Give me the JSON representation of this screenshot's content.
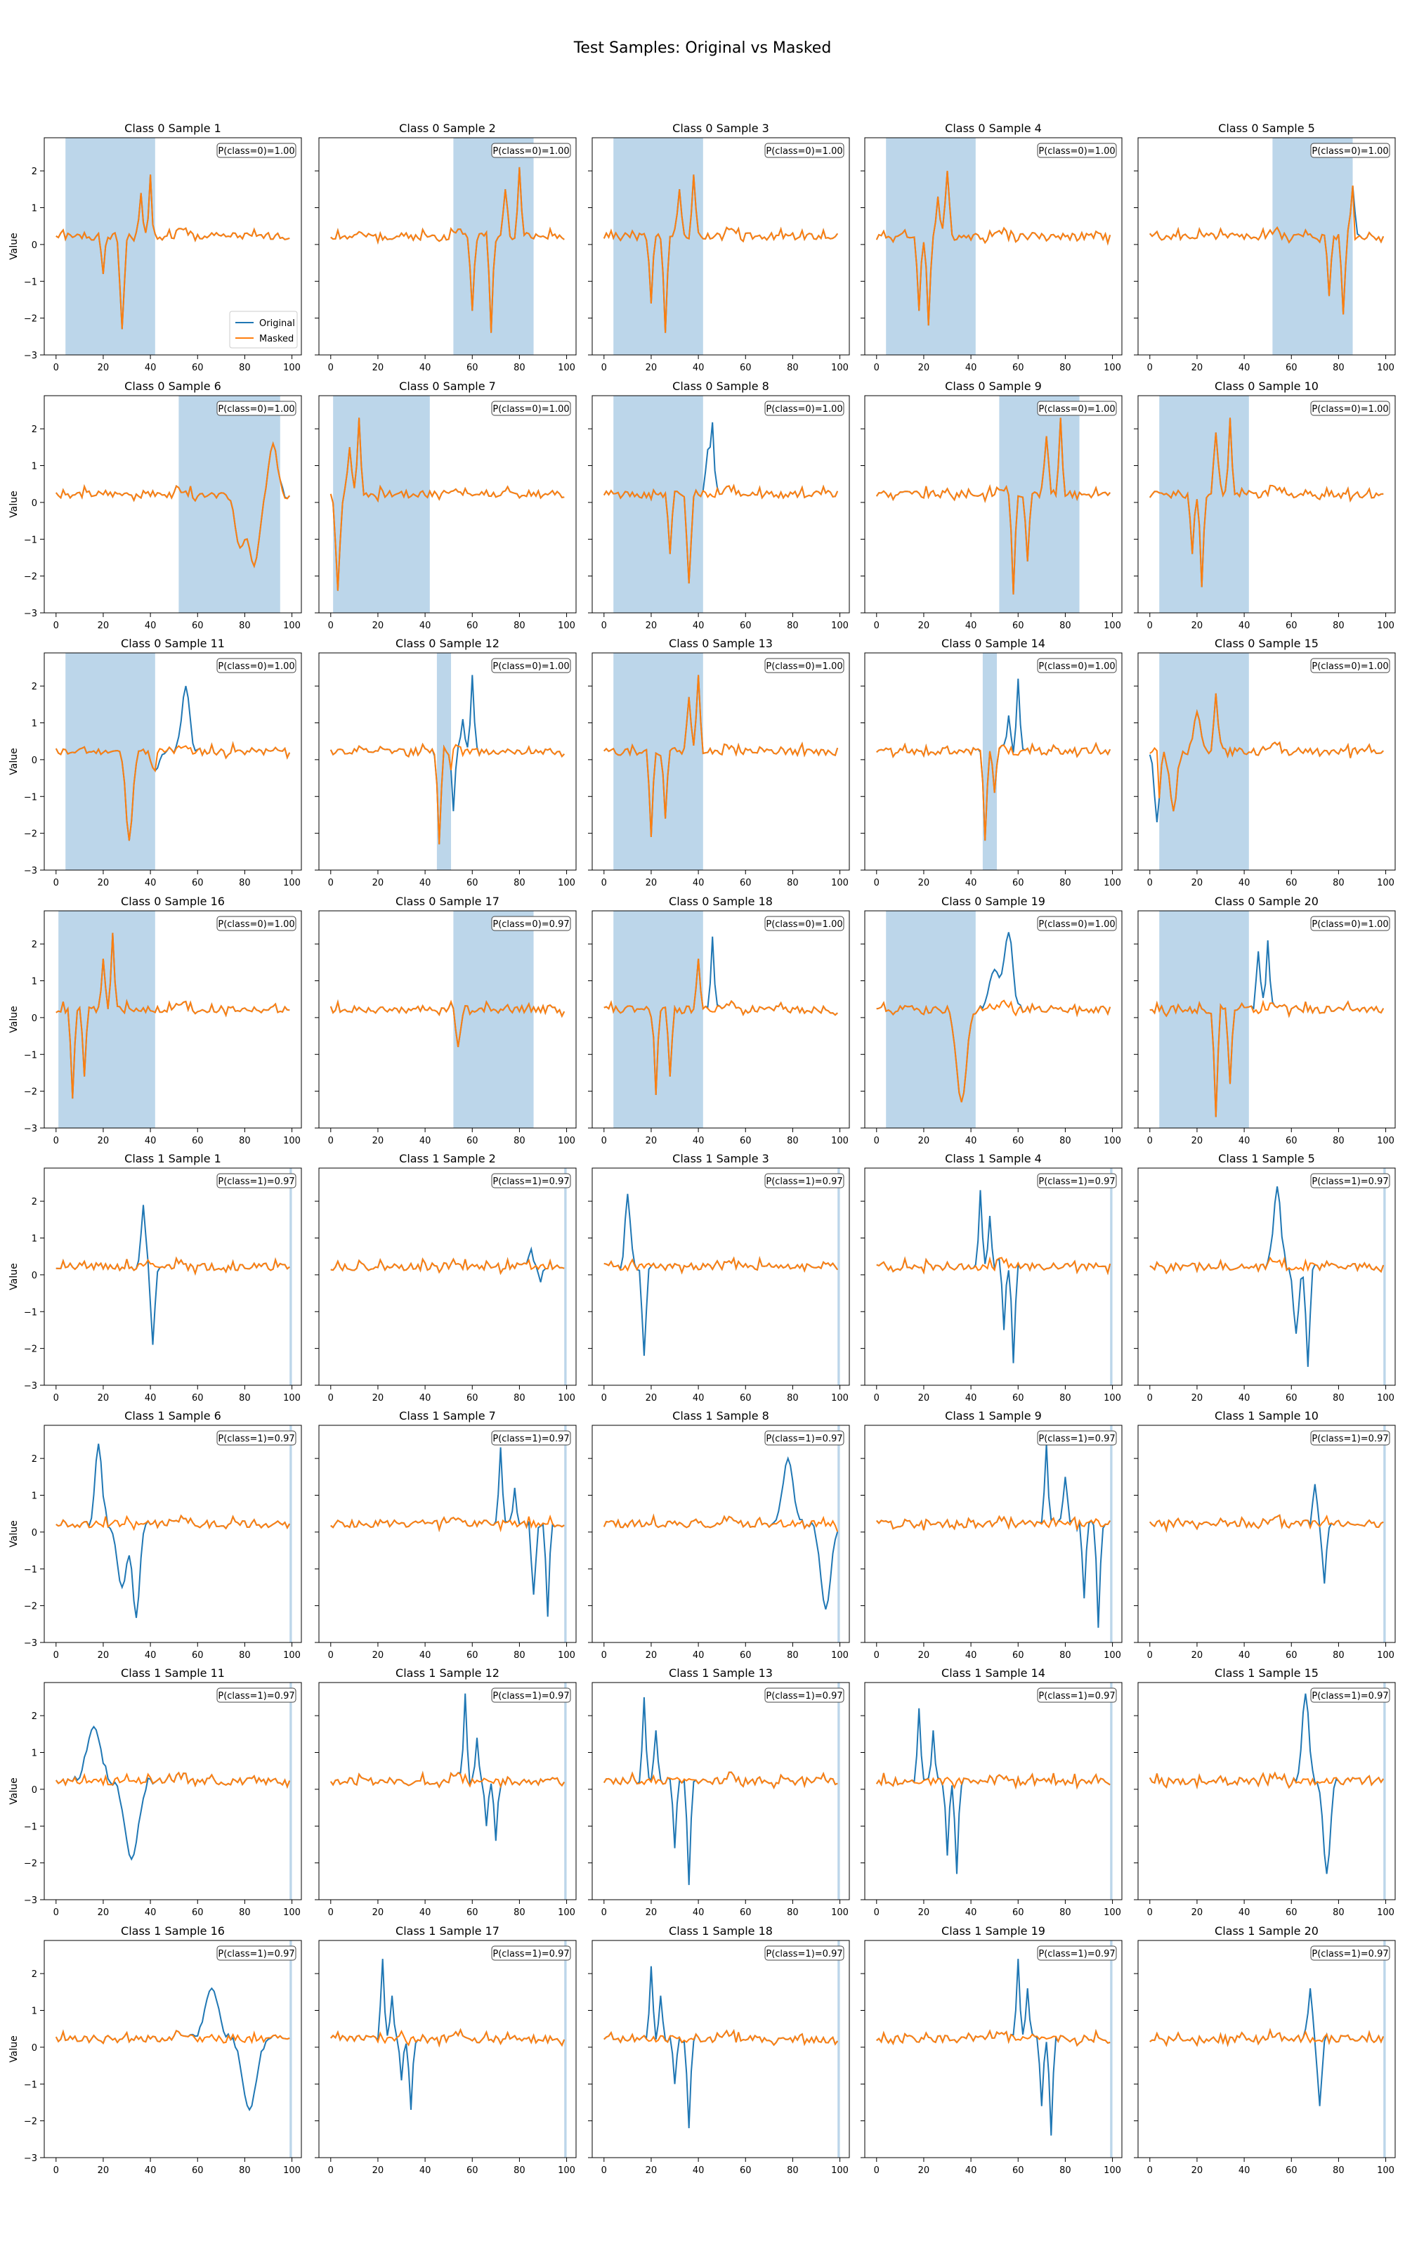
{
  "figure": {
    "title": "Test Samples: Original vs Masked",
    "ylabel": "Value",
    "legend": [
      "Original",
      "Masked"
    ],
    "colors": {
      "original": "#1f77b4",
      "masked": "#ff7f0e",
      "mask_span": "#bcd6ea"
    }
  },
  "chart_data": {
    "type": "line",
    "grid": false,
    "xlim": [
      -5,
      104
    ],
    "ylim": [
      -3,
      2.9
    ],
    "xticks": [
      0,
      20,
      40,
      60,
      80,
      100
    ],
    "yticks": [
      -3,
      -2,
      -1,
      0,
      1,
      2
    ],
    "panels": [
      {
        "title": "Class 0 Sample 1",
        "prob": "P(class=0)=1.00",
        "mask": [
          4,
          42
        ],
        "events": [
          [
            20,
            -0.8,
            1
          ],
          [
            28,
            -2.3,
            1.2
          ],
          [
            36,
            1.4,
            1
          ],
          [
            40,
            1.9,
            0.8
          ]
        ]
      },
      {
        "title": "Class 0 Sample 2",
        "prob": "P(class=0)=1.00",
        "mask": [
          52,
          86
        ],
        "events": [
          [
            60,
            -1.8,
            1
          ],
          [
            68,
            -2.4,
            1
          ],
          [
            74,
            1.5,
            1.2
          ],
          [
            80,
            2.1,
            1
          ]
        ]
      },
      {
        "title": "Class 0 Sample 3",
        "prob": "P(class=0)=1.00",
        "mask": [
          4,
          42
        ],
        "events": [
          [
            20,
            -1.6,
            1
          ],
          [
            26,
            -2.4,
            1
          ],
          [
            32,
            1.5,
            1.2
          ],
          [
            38,
            1.9,
            1
          ]
        ]
      },
      {
        "title": "Class 0 Sample 4",
        "prob": "P(class=0)=1.00",
        "mask": [
          4,
          42
        ],
        "events": [
          [
            18,
            -1.8,
            1
          ],
          [
            22,
            -2.2,
            1
          ],
          [
            26,
            1.3,
            1
          ],
          [
            30,
            2.0,
            1.2
          ]
        ]
      },
      {
        "title": "Class 0 Sample 5",
        "prob": "P(class=0)=1.00",
        "mask": [
          52,
          86
        ],
        "events": [
          [
            76,
            -1.4,
            1
          ],
          [
            82,
            -1.9,
            1
          ],
          [
            86,
            1.6,
            1.2
          ]
        ]
      },
      {
        "title": "Class 0 Sample 6",
        "prob": "P(class=0)=1.00",
        "mask": [
          52,
          95
        ],
        "events": [
          [
            78,
            -1.2,
            3
          ],
          [
            84,
            -1.7,
            3
          ],
          [
            92,
            1.6,
            2.5
          ]
        ]
      },
      {
        "title": "Class 0 Sample 7",
        "prob": "P(class=0)=1.00",
        "mask": [
          1,
          42
        ],
        "events": [
          [
            3,
            -2.4,
            1.2
          ],
          [
            8,
            1.5,
            1.2
          ],
          [
            12,
            2.3,
            1
          ]
        ]
      },
      {
        "title": "Class 0 Sample 8",
        "prob": "P(class=0)=1.00",
        "mask": [
          4,
          42
        ],
        "events": [
          [
            28,
            -1.4,
            1
          ],
          [
            36,
            -2.2,
            1.2
          ],
          [
            44,
            1.4,
            1.2
          ],
          [
            46,
            2.1,
            1
          ]
        ]
      },
      {
        "title": "Class 0 Sample 9",
        "prob": "P(class=0)=1.00",
        "mask": [
          52,
          86
        ],
        "events": [
          [
            58,
            -2.5,
            1
          ],
          [
            64,
            -1.6,
            1
          ],
          [
            72,
            1.8,
            1.2
          ],
          [
            78,
            2.3,
            1
          ]
        ]
      },
      {
        "title": "Class 0 Sample 10",
        "prob": "P(class=0)=1.00",
        "mask": [
          4,
          42
        ],
        "events": [
          [
            18,
            -1.4,
            1
          ],
          [
            22,
            -2.3,
            1
          ],
          [
            28,
            1.9,
            1.2
          ],
          [
            34,
            2.3,
            1
          ]
        ]
      },
      {
        "title": "Class 0 Sample 11",
        "prob": "P(class=0)=1.00",
        "mask": [
          4,
          42
        ],
        "events": [
          [
            31,
            -2.2,
            2
          ],
          [
            42,
            -0.3,
            2.5
          ],
          [
            55,
            2.0,
            2.2
          ]
        ]
      },
      {
        "title": "Class 0 Sample 12",
        "prob": "P(class=0)=1.00",
        "mask": [
          45,
          51
        ],
        "events": [
          [
            46,
            -2.3,
            1
          ],
          [
            52,
            -1.4,
            1
          ],
          [
            56,
            1.1,
            1
          ],
          [
            60,
            2.3,
            1
          ]
        ]
      },
      {
        "title": "Class 0 Sample 13",
        "prob": "P(class=0)=1.00",
        "mask": [
          4,
          42
        ],
        "events": [
          [
            20,
            -2.1,
            1
          ],
          [
            26,
            -1.6,
            1
          ],
          [
            36,
            1.7,
            1.2
          ],
          [
            40,
            2.3,
            1
          ]
        ]
      },
      {
        "title": "Class 0 Sample 14",
        "prob": "P(class=0)=1.00",
        "mask": [
          45,
          51
        ],
        "events": [
          [
            46,
            -2.2,
            1
          ],
          [
            50,
            -0.9,
            1
          ],
          [
            56,
            1.2,
            1
          ],
          [
            60,
            2.2,
            1
          ]
        ]
      },
      {
        "title": "Class 0 Sample 15",
        "prob": "P(class=0)=1.00",
        "mask": [
          4,
          42
        ],
        "events": [
          [
            3,
            -1.7,
            1.5
          ],
          [
            10,
            -1.4,
            2
          ],
          [
            20,
            1.3,
            2
          ],
          [
            28,
            1.8,
            1.2
          ]
        ]
      },
      {
        "title": "Class 0 Sample 16",
        "prob": "P(class=0)=1.00",
        "mask": [
          1,
          42
        ],
        "events": [
          [
            7,
            -2.2,
            1
          ],
          [
            12,
            -1.6,
            1
          ],
          [
            20,
            1.6,
            1
          ],
          [
            24,
            2.3,
            1
          ]
        ]
      },
      {
        "title": "Class 0 Sample 17",
        "prob": "P(class=0)=0.97",
        "mask": [
          52,
          86
        ],
        "events": [
          [
            54,
            -0.8,
            1.5
          ]
        ]
      },
      {
        "title": "Class 0 Sample 18",
        "prob": "P(class=0)=1.00",
        "mask": [
          4,
          42
        ],
        "events": [
          [
            22,
            -2.1,
            1
          ],
          [
            28,
            -1.6,
            1
          ],
          [
            40,
            1.6,
            1
          ],
          [
            46,
            2.2,
            1
          ]
        ]
      },
      {
        "title": "Class 0 Sample 19",
        "prob": "P(class=0)=1.00",
        "mask": [
          4,
          42
        ],
        "events": [
          [
            36,
            -2.3,
            3
          ],
          [
            50,
            1.3,
            3
          ],
          [
            56,
            2.3,
            2.5
          ]
        ]
      },
      {
        "title": "Class 0 Sample 20",
        "prob": "P(class=0)=1.00",
        "mask": [
          4,
          42
        ],
        "events": [
          [
            28,
            -2.7,
            1
          ],
          [
            34,
            -1.8,
            1
          ],
          [
            46,
            1.8,
            1.2
          ],
          [
            50,
            2.1,
            1
          ]
        ]
      },
      {
        "title": "Class 1 Sample 1",
        "prob": "P(class=1)=0.97",
        "mask": [
          99,
          100
        ],
        "events": [
          [
            37,
            1.9,
            1.2
          ],
          [
            41,
            -1.9,
            1.2
          ]
        ]
      },
      {
        "title": "Class 1 Sample 2",
        "prob": "P(class=1)=0.97",
        "mask": [
          99,
          100
        ],
        "events": [
          [
            85,
            0.7,
            1
          ],
          [
            89,
            -0.2,
            1
          ]
        ]
      },
      {
        "title": "Class 1 Sample 3",
        "prob": "P(class=1)=0.97",
        "mask": [
          99,
          100
        ],
        "events": [
          [
            10,
            2.2,
            1.5
          ],
          [
            17,
            -2.2,
            1.2
          ]
        ]
      },
      {
        "title": "Class 1 Sample 4",
        "prob": "P(class=1)=0.97",
        "mask": [
          99,
          100
        ],
        "events": [
          [
            44,
            2.3,
            1
          ],
          [
            48,
            1.6,
            1
          ],
          [
            54,
            -1.5,
            1
          ],
          [
            58,
            -2.4,
            1
          ]
        ]
      },
      {
        "title": "Class 1 Sample 5",
        "prob": "P(class=1)=0.97",
        "mask": [
          99,
          100
        ],
        "events": [
          [
            54,
            2.4,
            2
          ],
          [
            62,
            -1.6,
            1.5
          ],
          [
            67,
            -2.5,
            1.2
          ]
        ]
      },
      {
        "title": "Class 1 Sample 6",
        "prob": "P(class=1)=0.97",
        "mask": [
          99,
          100
        ],
        "events": [
          [
            18,
            2.4,
            2
          ],
          [
            28,
            -1.5,
            3
          ],
          [
            34,
            -2.3,
            2
          ]
        ]
      },
      {
        "title": "Class 1 Sample 7",
        "prob": "P(class=1)=0.97",
        "mask": [
          99,
          100
        ],
        "events": [
          [
            72,
            2.3,
            1
          ],
          [
            78,
            1.2,
            1
          ],
          [
            86,
            -1.7,
            1.2
          ],
          [
            92,
            -2.3,
            1
          ]
        ]
      },
      {
        "title": "Class 1 Sample 8",
        "prob": "P(class=1)=0.97",
        "mask": [
          99,
          100
        ],
        "events": [
          [
            78,
            2.0,
            3
          ],
          [
            94,
            -2.1,
            3
          ]
        ]
      },
      {
        "title": "Class 1 Sample 9",
        "prob": "P(class=1)=0.97",
        "mask": [
          99,
          100
        ],
        "events": [
          [
            72,
            2.4,
            1
          ],
          [
            80,
            1.5,
            1.2
          ],
          [
            88,
            -1.8,
            1
          ],
          [
            94,
            -2.6,
            1
          ]
        ]
      },
      {
        "title": "Class 1 Sample 10",
        "prob": "P(class=1)=0.97",
        "mask": [
          99,
          100
        ],
        "events": [
          [
            70,
            1.3,
            1.2
          ],
          [
            74,
            -1.4,
            1.2
          ]
        ]
      },
      {
        "title": "Class 1 Sample 11",
        "prob": "P(class=1)=0.97",
        "mask": [
          99,
          100
        ],
        "events": [
          [
            16,
            1.7,
            4
          ],
          [
            32,
            -1.9,
            4
          ]
        ]
      },
      {
        "title": "Class 1 Sample 12",
        "prob": "P(class=1)=0.97",
        "mask": [
          99,
          100
        ],
        "events": [
          [
            57,
            2.6,
            1
          ],
          [
            62,
            1.4,
            1
          ],
          [
            66,
            -1.0,
            1
          ],
          [
            70,
            -1.4,
            1
          ]
        ]
      },
      {
        "title": "Class 1 Sample 13",
        "prob": "P(class=1)=0.97",
        "mask": [
          99,
          100
        ],
        "events": [
          [
            17,
            2.5,
            1
          ],
          [
            22,
            1.6,
            1
          ],
          [
            30,
            -1.6,
            1
          ],
          [
            36,
            -2.6,
            1
          ]
        ]
      },
      {
        "title": "Class 1 Sample 14",
        "prob": "P(class=1)=0.97",
        "mask": [
          99,
          100
        ],
        "events": [
          [
            18,
            2.2,
            1
          ],
          [
            24,
            1.6,
            1
          ],
          [
            30,
            -1.8,
            1
          ],
          [
            34,
            -2.3,
            1
          ]
        ]
      },
      {
        "title": "Class 1 Sample 15",
        "prob": "P(class=1)=0.97",
        "mask": [
          99,
          100
        ],
        "events": [
          [
            66,
            2.6,
            2
          ],
          [
            75,
            -2.3,
            2
          ]
        ]
      },
      {
        "title": "Class 1 Sample 16",
        "prob": "P(class=1)=0.97",
        "mask": [
          99,
          100
        ],
        "events": [
          [
            66,
            1.6,
            4
          ],
          [
            82,
            -1.7,
            4
          ]
        ]
      },
      {
        "title": "Class 1 Sample 17",
        "prob": "P(class=1)=0.97",
        "mask": [
          99,
          100
        ],
        "events": [
          [
            22,
            2.4,
            1
          ],
          [
            26,
            1.4,
            1
          ],
          [
            30,
            -0.9,
            1
          ],
          [
            34,
            -1.7,
            1
          ]
        ]
      },
      {
        "title": "Class 1 Sample 18",
        "prob": "P(class=1)=0.97",
        "mask": [
          99,
          100
        ],
        "events": [
          [
            20,
            2.2,
            1
          ],
          [
            24,
            1.4,
            1
          ],
          [
            30,
            -1.0,
            1
          ],
          [
            36,
            -2.2,
            1
          ]
        ]
      },
      {
        "title": "Class 1 Sample 19",
        "prob": "P(class=1)=0.97",
        "mask": [
          99,
          100
        ],
        "events": [
          [
            60,
            2.4,
            1
          ],
          [
            64,
            1.6,
            1
          ],
          [
            70,
            -1.6,
            1
          ],
          [
            74,
            -2.4,
            1
          ]
        ]
      },
      {
        "title": "Class 1 Sample 20",
        "prob": "P(class=1)=0.97",
        "mask": [
          99,
          100
        ],
        "events": [
          [
            68,
            1.6,
            1.2
          ],
          [
            72,
            -1.6,
            1.2
          ]
        ]
      }
    ]
  }
}
